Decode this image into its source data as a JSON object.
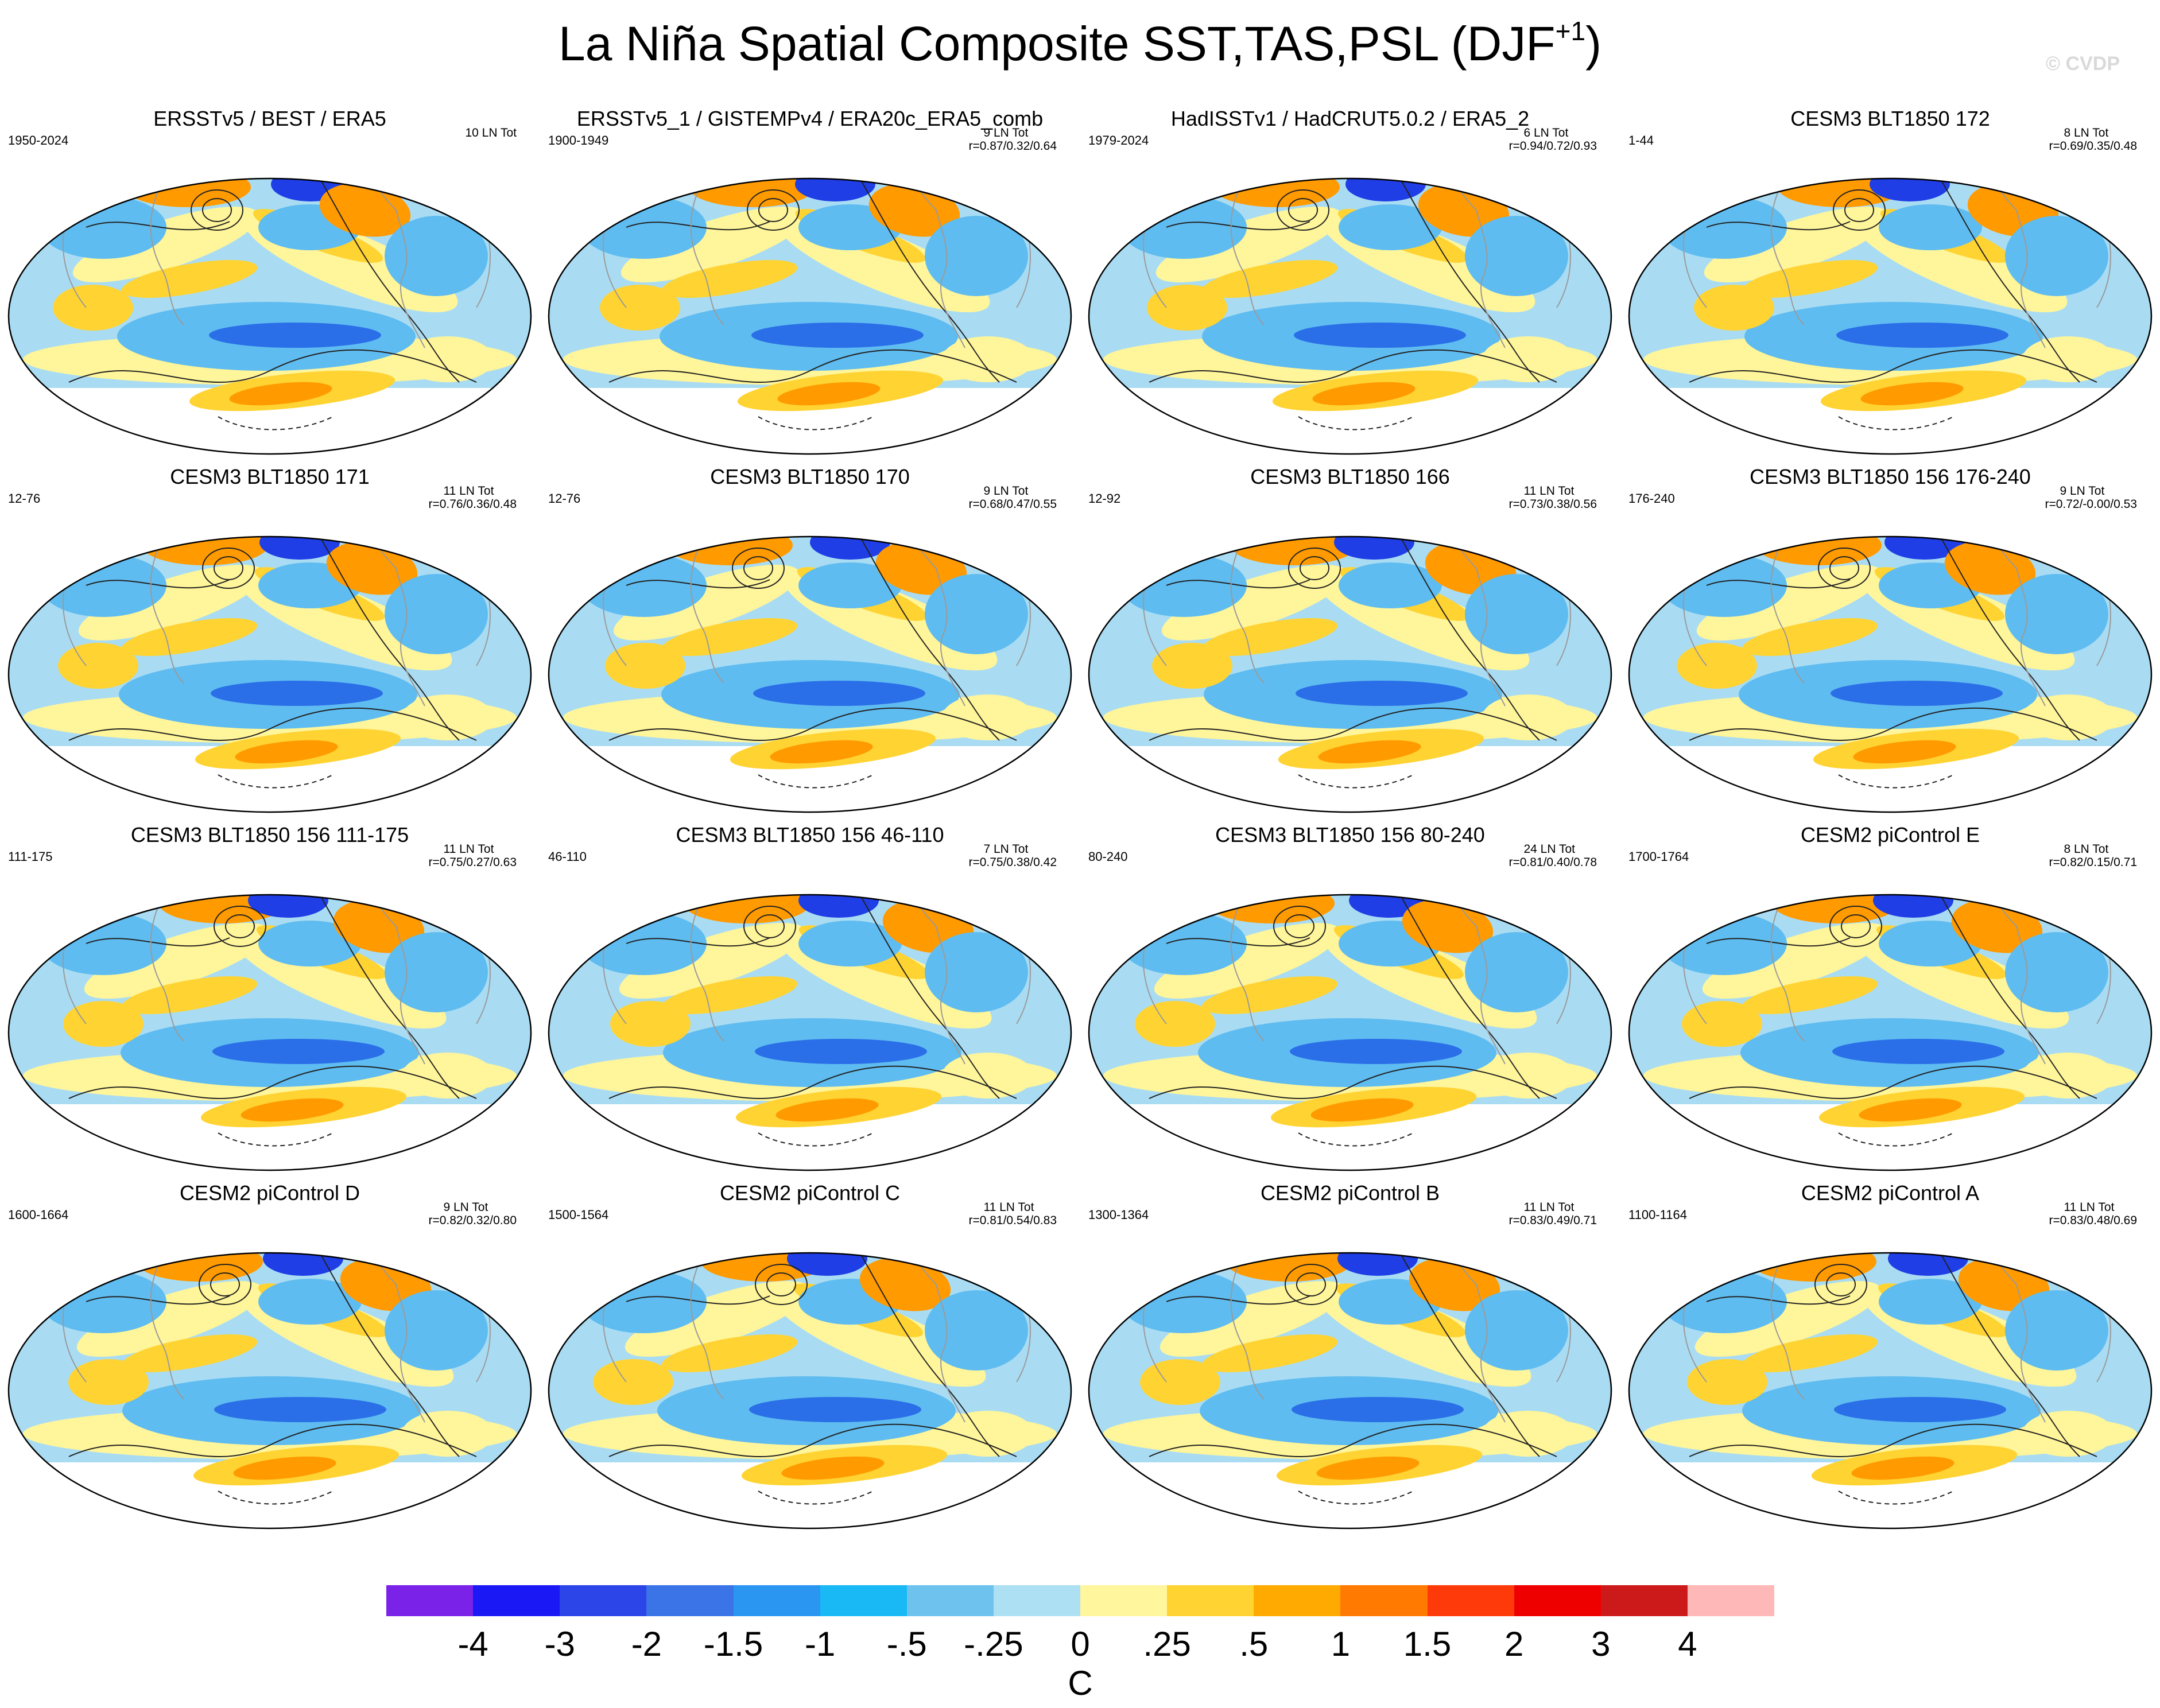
{
  "title": {
    "main": "La Niña Spatial Composite SST,TAS,PSL (DJF",
    "sup": "+1",
    "close": ")"
  },
  "copyright": "© CVDP",
  "colors": {
    "ocean_light_blue": "#a9dcf3",
    "ocean_blue": "#5fbcf0",
    "cold_blue": "#2a6fe8",
    "deep_blue": "#1f3ee6",
    "pale_yellow": "#fff59a",
    "yellow": "#ffd332",
    "orange": "#ff9a00",
    "red": "#ee2200"
  },
  "panels": [
    {
      "title": "ERSSTv5 / BEST / ERA5",
      "years": "1950-2024",
      "count": "10 LN Tot",
      "corr": ""
    },
    {
      "title": "ERSSTv5_1 / GISTEMPv4 / ERA20c_ERA5_comb",
      "years": "1900-1949",
      "count": "9 LN Tot",
      "corr": "r=0.87/0.32/0.64"
    },
    {
      "title": "HadISSTv1 / HadCRUT5.0.2 / ERA5_2",
      "years": "1979-2024",
      "count": "6 LN Tot",
      "corr": "r=0.94/0.72/0.93"
    },
    {
      "title": "CESM3 BLT1850 172",
      "years": "1-44",
      "count": "8 LN Tot",
      "corr": "r=0.69/0.35/0.48"
    },
    {
      "title": "CESM3 BLT1850 171",
      "years": "12-76",
      "count": "11 LN Tot",
      "corr": "r=0.76/0.36/0.48"
    },
    {
      "title": "CESM3 BLT1850 170",
      "years": "12-76",
      "count": "9 LN Tot",
      "corr": "r=0.68/0.47/0.55"
    },
    {
      "title": "CESM3 BLT1850 166",
      "years": "12-92",
      "count": "11 LN Tot",
      "corr": "r=0.73/0.38/0.56"
    },
    {
      "title": "CESM3 BLT1850 156 176-240",
      "years": "176-240",
      "count": "9 LN Tot",
      "corr": "r=0.72/-0.00/0.53"
    },
    {
      "title": "CESM3 BLT1850 156 111-175",
      "years": "111-175",
      "count": "11 LN Tot",
      "corr": "r=0.75/0.27/0.63"
    },
    {
      "title": "CESM3 BLT1850 156 46-110",
      "years": "46-110",
      "count": "7 LN Tot",
      "corr": "r=0.75/0.38/0.42"
    },
    {
      "title": "CESM3 BLT1850 156 80-240",
      "years": "80-240",
      "count": "24 LN Tot",
      "corr": "r=0.81/0.40/0.78"
    },
    {
      "title": "CESM2 piControl E",
      "years": "1700-1764",
      "count": "8 LN Tot",
      "corr": "r=0.82/0.15/0.71"
    },
    {
      "title": "CESM2 piControl D",
      "years": "1600-1664",
      "count": "9 LN Tot",
      "corr": "r=0.82/0.32/0.80"
    },
    {
      "title": "CESM2 piControl C",
      "years": "1500-1564",
      "count": "11 LN Tot",
      "corr": "r=0.81/0.54/0.83"
    },
    {
      "title": "CESM2 piControl B",
      "years": "1300-1364",
      "count": "11 LN Tot",
      "corr": "r=0.83/0.49/0.71"
    },
    {
      "title": "CESM2 piControl A",
      "years": "1100-1164",
      "count": "11 LN Tot",
      "corr": "r=0.83/0.48/0.69"
    }
  ],
  "colorbar": {
    "units": "C",
    "colors": [
      "#7a22e8",
      "#1a18f5",
      "#2b45e8",
      "#3a74e6",
      "#2a96f2",
      "#19b9f5",
      "#6ec3ee",
      "#aee0f4",
      "#fff69e",
      "#ffd332",
      "#ffaa00",
      "#ff7a00",
      "#ff3a0a",
      "#ee0000",
      "#cc1a1a",
      "#ffb8b8"
    ],
    "ticks": [
      "-4",
      "-3",
      "-2",
      "-1.5",
      "-1",
      "-.5",
      "-.25",
      "0",
      ".25",
      ".5",
      "1",
      "1.5",
      "2",
      "3",
      "4"
    ]
  }
}
